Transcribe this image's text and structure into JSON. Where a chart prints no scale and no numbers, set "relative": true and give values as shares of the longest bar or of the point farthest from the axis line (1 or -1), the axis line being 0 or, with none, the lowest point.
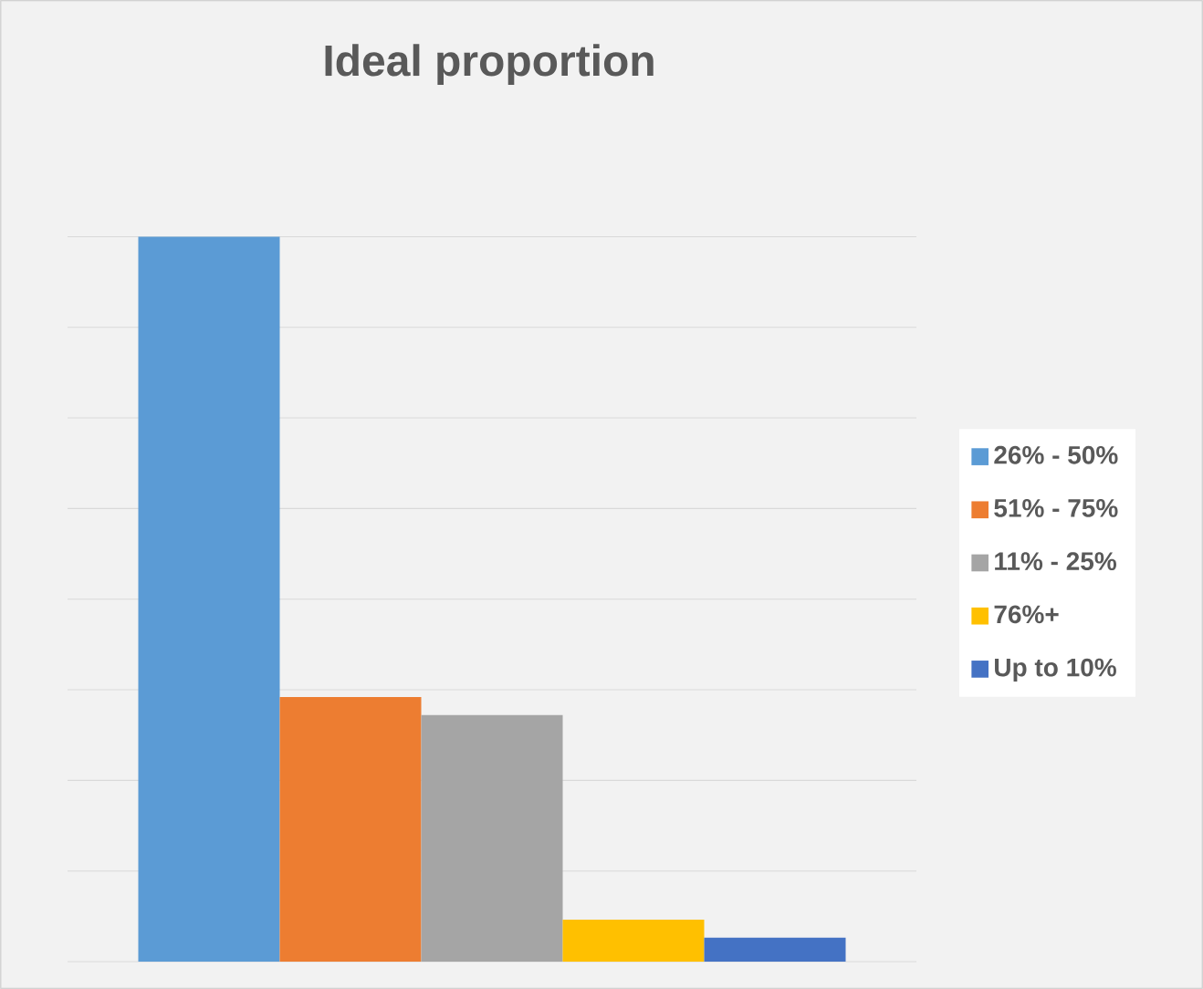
{
  "chart_data": {
    "type": "bar",
    "title": "Ideal proportion",
    "relative": true,
    "grid": "y",
    "legend": "right",
    "categories": [
      null
    ],
    "series": [
      {
        "name": "26% - 50%",
        "color": "#5b9bd5",
        "values": [
          1
        ]
      },
      {
        "name": "51% - 75%",
        "color": "#ed7d31",
        "values": [
          0.365
        ]
      },
      {
        "name": "11% - 25%",
        "color": "#a5a5a5",
        "values": [
          0.34
        ]
      },
      {
        "name": "76%+",
        "color": "#ffc000",
        "values": [
          0.058
        ]
      },
      {
        "name": "Up to 10%",
        "color": "#4472c4",
        "values": [
          0.033
        ]
      }
    ]
  }
}
